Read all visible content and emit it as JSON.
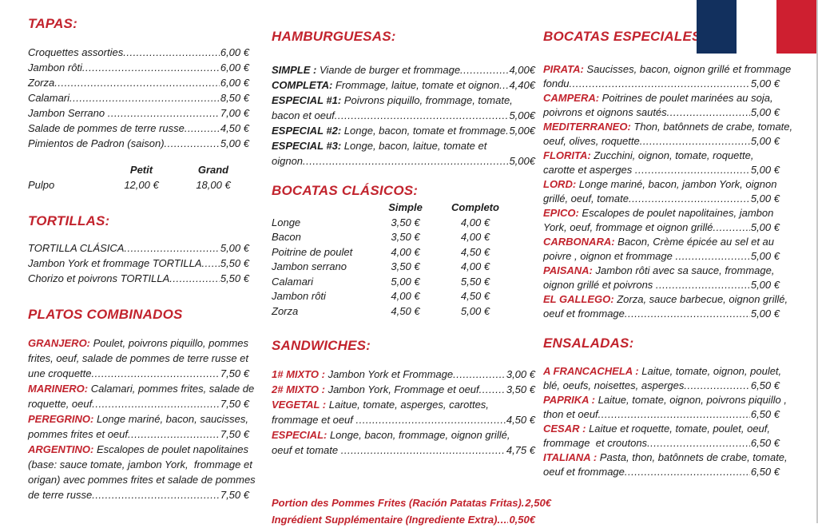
{
  "page": {
    "background": "#ffffff",
    "accent_red": "#c2232d",
    "text_color": "#1c1c1c"
  },
  "flag": {
    "label": "french-flag",
    "colors": [
      "#12305e",
      "#ffffff",
      "#ce1f30"
    ]
  },
  "columns": [
    {
      "sections": [
        {
          "id": "tapas",
          "title": "TAPAS:",
          "items": [
            {
              "name": "",
              "lines": [
                {
                  "text": "Croquettes assorties",
                  "dots": true,
                  "price": "6,00 €"
                }
              ]
            },
            {
              "name": "",
              "lines": [
                {
                  "text": "Jambon rôti",
                  "dots": true,
                  "price": "6,00 €"
                }
              ]
            },
            {
              "name": "",
              "lines": [
                {
                  "text": "Zorza",
                  "dots": true,
                  "price": "6,00 €"
                }
              ]
            },
            {
              "name": "",
              "lines": [
                {
                  "text": "Calamari",
                  "dots": true,
                  "price": "8,50 €"
                }
              ]
            },
            {
              "name": "",
              "lines": [
                {
                  "text": "Jambon Serrano ",
                  "dots": true,
                  "price": "7,00 €"
                }
              ]
            },
            {
              "name": "",
              "lines": [
                {
                  "text": "Salade de pommes de terre russe",
                  "dots": true,
                  "price": "4,50 €"
                }
              ]
            },
            {
              "name": "",
              "lines": [
                {
                  "text": "Pimientos de Padron (saison)",
                  "dots": true,
                  "price": "5,00 €"
                }
              ]
            }
          ],
          "table": {
            "cls": "pulpo",
            "headers": [
              "Petit",
              "Grand"
            ],
            "rows": [
              {
                "label": "Pulpo",
                "values": [
                  "12,00 €",
                  "18,00 €"
                ]
              }
            ]
          }
        },
        {
          "id": "tortillas",
          "title": "TORTILLAS:",
          "gap": 26,
          "mb": 14,
          "items": [
            {
              "name": "",
              "lines": [
                {
                  "text": "TORTILLA CLÁSICA",
                  "dots": true,
                  "price": "5,00 €"
                }
              ]
            },
            {
              "name": "",
              "lines": [
                {
                  "text": "Jambon York et frommage TORTILLA",
                  "dots": true,
                  "price": "5,50 €"
                }
              ]
            },
            {
              "name": "",
              "lines": [
                {
                  "text": "Chorizo et poivrons TORTILLA",
                  "dots": true,
                  "price": "5,50 €"
                }
              ]
            }
          ]
        },
        {
          "id": "platos-combinados",
          "title": "PLATOS COMBINADOS",
          "gap": 26,
          "items": [
            {
              "name": "GRANJERO:",
              "lines": [
                {
                  "text": " Poulet, poivrons piquillo, pommes"
                },
                {
                  "text": "frites, oeuf, salade de pommes de terre russe et"
                },
                {
                  "text": "une croquette",
                  "dots": true,
                  "price": "7,50 €"
                }
              ]
            },
            {
              "name": "MARINERO:",
              "lines": [
                {
                  "text": " Calamari, pommes frites, salade de"
                },
                {
                  "text": "roquette, oeuf",
                  "dots": true,
                  "price": "7,50 €"
                }
              ]
            },
            {
              "name": "PEREGRINO:",
              "lines": [
                {
                  "text": " Longe mariné, bacon, saucisses,"
                },
                {
                  "text": "pommes frites et oeuf",
                  "dots": true,
                  "price": "7,50 €"
                }
              ]
            },
            {
              "name": "ARGENTINO:",
              "lines": [
                {
                  "text": " Escalopes de poulet napolitaines"
                },
                {
                  "text": "(base: sauce tomate, jambon York,  frommage et"
                },
                {
                  "text": "origan) avec pommes frites et salade de pommes"
                },
                {
                  "text": "de terre russe",
                  "dots": true,
                  "price": "7,50 €"
                }
              ]
            }
          ]
        }
      ]
    },
    {
      "sections": [
        {
          "id": "hamburguesas",
          "title": "HAMBURGUESAS:",
          "mb": 22,
          "items": [
            {
              "name": "SIMPLE :",
              "dark": true,
              "lines": [
                {
                  "text": " Viande de burger et frommage",
                  "dots": true,
                  "price": "4,00€"
                }
              ]
            },
            {
              "name": "COMPLETA:",
              "dark": true,
              "lines": [
                {
                  "text": " Frommage, laitue, tomate et oignon",
                  "dots": true,
                  "price": "4,40€"
                }
              ]
            },
            {
              "name": "ESPECIAL #1:",
              "dark": true,
              "lines": [
                {
                  "text": " Poivrons piquillo, frommage, tomate,"
                },
                {
                  "text": "bacon et oeuf",
                  "dots": true,
                  "price": "5,00€"
                }
              ]
            },
            {
              "name": "ESPECIAL #2:",
              "dark": true,
              "lines": [
                {
                  "text": " Longe, bacon, tomate et frommage",
                  "dots": true,
                  "price": "5,00€"
                }
              ]
            },
            {
              "name": "ESPECIAL #3:",
              "dark": true,
              "lines": [
                {
                  "text": " Longe, bacon, laitue, tomate et"
                },
                {
                  "text": "oignon",
                  "dots": true,
                  "price": "5,00€"
                }
              ]
            }
          ]
        },
        {
          "id": "bocatas-clasicos",
          "title": "BOCATAS CLÁSICOS:",
          "gap": 18,
          "mb": 2,
          "table": {
            "cls": "bocatas",
            "headers": [
              "Simple",
              "Completo"
            ],
            "rows": [
              {
                "label": "Longe",
                "values": [
                  "3,50 €",
                  "4,00 €"
                ]
              },
              {
                "label": "Bacon",
                "values": [
                  "3,50 €",
                  "4,00 €"
                ]
              },
              {
                "label": "Poitrine de poulet",
                "values": [
                  "4,00 €",
                  "4,50 €"
                ]
              },
              {
                "label": "Jambon serrano",
                "values": [
                  "3,50 €",
                  "4,00 €"
                ]
              },
              {
                "label": "Calamari",
                "values": [
                  "5,00 €",
                  "5,50 €"
                ]
              },
              {
                "label": "Jambon rôti",
                "values": [
                  "4,00 €",
                  "4,50 €"
                ]
              },
              {
                "label": "Zorza",
                "values": [
                  "4,50 €",
                  "5,00 €"
                ]
              }
            ]
          }
        },
        {
          "id": "sandwiches",
          "title": "SANDWICHES:",
          "gap": 24,
          "mb": 16,
          "items": [
            {
              "name": "1# MIXTO :",
              "lines": [
                {
                  "text": " Jambon York et Frommage",
                  "dots": true,
                  "price": "3,00 €"
                }
              ]
            },
            {
              "name": "2# MIXTO :",
              "lines": [
                {
                  "text": " Jambon York, Frommage et oeuf",
                  "dots": true,
                  "price": "3,50 €"
                }
              ]
            },
            {
              "name": "VEGETAL :",
              "lines": [
                {
                  "text": " Laitue, tomate, asperges, carottes,"
                },
                {
                  "text": "frommage et oeuf ",
                  "dots": true,
                  "price": "4,50 €"
                }
              ]
            },
            {
              "name": "ESPECIAL:",
              "lines": [
                {
                  "text": " Longe, bacon, frommage, oignon grillé,"
                },
                {
                  "text": "oeuf et tomate ",
                  "dots": true,
                  "price": "4,75 €"
                }
              ]
            }
          ]
        },
        {
          "id": "notes",
          "gap": 46,
          "items": [
            {
              "name": "",
              "red": true,
              "lines": [
                {
                  "text": "Portion des Pommes Frites (Ración Patatas Fritas).",
                  "price": "2,50€"
                }
              ]
            },
            {
              "name": "",
              "red": true,
              "lines": [
                {
                  "text": "Ingrédient Supplémentaire (Ingrediente Extra)",
                  "dots": true,
                  "price": "0,50€"
                }
              ]
            }
          ]
        }
      ]
    },
    {
      "sections": [
        {
          "id": "bocatas-especiales",
          "title": "BOCATAS ESPECIALES :",
          "mb": 22,
          "items": [
            {
              "name": "PIRATA:",
              "lines": [
                {
                  "text": " Saucisses, bacon, oignon grillé et frommage"
                },
                {
                  "text": "fondu",
                  "dots": true,
                  "price": "5,00 €"
                }
              ]
            },
            {
              "name": "CAMPERA:",
              "lines": [
                {
                  "text": " Poitrines de poulet marinées au soja,"
                },
                {
                  "text": "poivrons et oignons sautés",
                  "dots": true,
                  "price": "5,00 €"
                }
              ]
            },
            {
              "name": "MEDITERRANEO:",
              "lines": [
                {
                  "text": " Thon, batônnets de crabe, tomate,"
                },
                {
                  "text": "oeuf, olives, roquette",
                  "dots": true,
                  "price": "5,00 €"
                }
              ]
            },
            {
              "name": "FLORITA:",
              "lines": [
                {
                  "text": " Zucchini, oignon, tomate, roquette,"
                },
                {
                  "text": "carotte et asperges ",
                  "dots": true,
                  "price": "5,00 €"
                }
              ]
            },
            {
              "name": "LORD:",
              "lines": [
                {
                  "text": " Longe mariné, bacon, jambon York, oignon"
                },
                {
                  "text": "grillé, oeuf, tomate",
                  "dots": true,
                  "price": "5,00 €"
                }
              ]
            },
            {
              "name": "EPICO:",
              "lines": [
                {
                  "text": " Escalopes de poulet napolitaines, jambon"
                },
                {
                  "text": "York, oeuf, frommage et oignon grillé",
                  "dots": true,
                  "price": "5,00 €"
                }
              ]
            },
            {
              "name": "CARBONARA:",
              "lines": [
                {
                  "text": " Bacon, Crème épicée au sel et au"
                },
                {
                  "text": "poivre , oignon et frommage ",
                  "dots": true,
                  "price": "5,00 €"
                }
              ]
            },
            {
              "name": "PAISANA:",
              "lines": [
                {
                  "text": " Jambon rôti avec sa sauce, frommage,"
                },
                {
                  "text": "oignon grillé et poivrons ",
                  "dots": true,
                  "price": "5,00 €"
                }
              ]
            },
            {
              "name": "EL GALLEGO:",
              "lines": [
                {
                  "text": " Zorza, sauce barbecue, oignon grillé,"
                },
                {
                  "text": "oeuf et frommage",
                  "dots": true,
                  "price": "5,00 €"
                }
              ]
            }
          ]
        },
        {
          "id": "ensaladas",
          "title": "ENSALADAS:",
          "gap": 18,
          "mb": 16,
          "items": [
            {
              "name": "A FRANCACHELA :",
              "lines": [
                {
                  "text": " Laitue, tomate, oignon, poulet,"
                },
                {
                  "text": "blé, oeufs, noisettes, asperges",
                  "dots": true,
                  "price": "6,50 €"
                }
              ]
            },
            {
              "name": "PAPRIKA :",
              "lines": [
                {
                  "text": " Laitue, tomate, oignon, poivrons piquillo ,"
                },
                {
                  "text": "thon et oeuf",
                  "dots": true,
                  "price": "6,50 €"
                }
              ]
            },
            {
              "name": "CESAR :",
              "lines": [
                {
                  "text": " Laitue et roquette, tomate, poulet, oeuf,"
                },
                {
                  "text": "frommage  et croutons",
                  "dots": true,
                  "price": "6,50 €"
                }
              ]
            },
            {
              "name": "ITALIANA :",
              "lines": [
                {
                  "text": " Pasta, thon, batônnets de crabe, tomate,"
                },
                {
                  "text": "oeuf et frommage",
                  "dots": true,
                  "price": "6,50 €"
                }
              ]
            }
          ]
        }
      ]
    }
  ]
}
